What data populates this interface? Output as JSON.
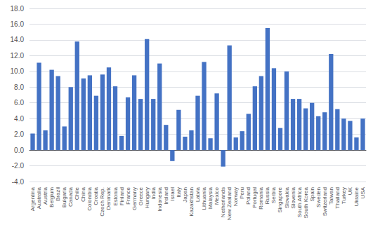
{
  "chart_data": {
    "type": "bar",
    "categories": [
      "Argentina",
      "Australia",
      "Austria",
      "Belgium",
      "Brazil",
      "Bulgaria",
      "Canada",
      "Chile",
      "China",
      "Colombia",
      "Croatia",
      "Czech Rep.",
      "Denmark",
      "Estonia",
      "Finland",
      "France",
      "Germany",
      "Greece",
      "Hungary",
      "India",
      "Indonesia",
      "Ireland",
      "Israel",
      "Italy",
      "Japan",
      "Kazakhstan",
      "Latvia",
      "Lithuania",
      "Malaysia",
      "Mexico",
      "Netherlands",
      "New Zealand",
      "Norway",
      "Peru",
      "Poland",
      "Portugal",
      "Romania",
      "Russia",
      "Serbia",
      "Singapore",
      "Slovakia",
      "Slovenia",
      "South Africa",
      "South Korea",
      "Spain",
      "Sweden",
      "Switzerland",
      "Taiwan",
      "Thailand",
      "Turkey",
      "UK",
      "Ukraine",
      "USA"
    ],
    "values": [
      2.1,
      11.1,
      2.5,
      10.2,
      9.4,
      3.0,
      8.0,
      13.8,
      9.1,
      9.5,
      6.9,
      9.6,
      10.5,
      8.1,
      1.8,
      6.7,
      9.5,
      6.5,
      14.1,
      6.5,
      11.0,
      3.2,
      -1.4,
      5.1,
      1.7,
      2.5,
      6.9,
      11.2,
      1.5,
      7.2,
      -2.1,
      13.3,
      1.6,
      2.4,
      4.6,
      8.1,
      9.4,
      15.5,
      10.4,
      2.8,
      10.0,
      6.5,
      6.5,
      5.3,
      6.0,
      4.3,
      4.8,
      12.2,
      5.2,
      4.0,
      3.7,
      1.6,
      4.0
    ],
    "color": "#4472c4",
    "ylim": [
      -4.0,
      18.0
    ],
    "yticks": [
      {
        "value": -4,
        "label": "-4.0"
      },
      {
        "value": -2,
        "label": "-2.0"
      },
      {
        "value": 0,
        "label": "0.0"
      },
      {
        "value": 2,
        "label": "2.0"
      },
      {
        "value": 4,
        "label": "4.0"
      },
      {
        "value": 6,
        "label": "6.0"
      },
      {
        "value": 8,
        "label": "8.0"
      },
      {
        "value": 10,
        "label": "10.0"
      },
      {
        "value": 12,
        "label": "12.0"
      },
      {
        "value": 14,
        "label": "14.0"
      },
      {
        "value": 16,
        "label": "16.0"
      },
      {
        "value": 18,
        "label": "18.0"
      }
    ],
    "grid": true
  }
}
